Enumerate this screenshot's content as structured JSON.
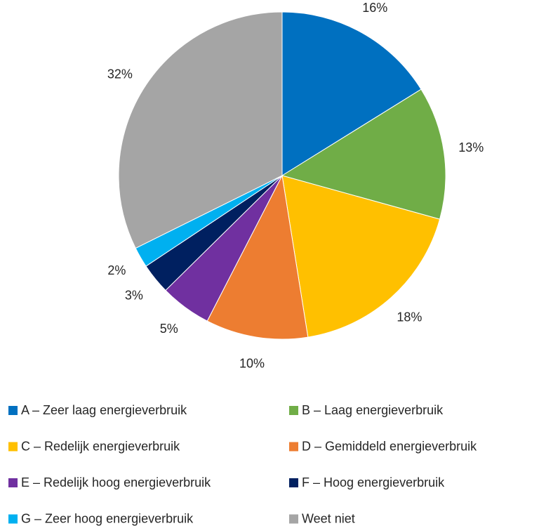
{
  "chart_data": {
    "type": "pie",
    "categories": [
      "A – Zeer laag energieverbruik",
      "B – Laag energieverbruik",
      "C – Redelijk energieverbruik",
      "D – Gemiddeld energieverbruik",
      "E – Redelijk hoog energieverbruik",
      "F – Hoog energieverbruik",
      "G – Zeer hoog energieverbruik",
      "Weet niet"
    ],
    "values": [
      16,
      13,
      18,
      10,
      5,
      3,
      2,
      32
    ],
    "value_labels": [
      "16%",
      "13%",
      "18%",
      "10%",
      "5%",
      "3%",
      "2%",
      "32%"
    ],
    "colors": [
      "#0070c0",
      "#70ad47",
      "#ffc000",
      "#ed7d31",
      "#7030a0",
      "#002060",
      "#00b0f0",
      "#a5a5a5"
    ],
    "legend": "bottom"
  }
}
